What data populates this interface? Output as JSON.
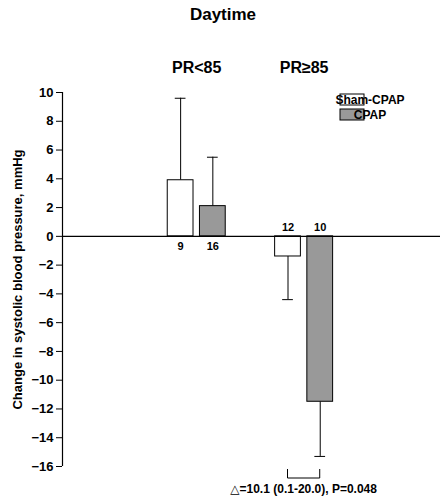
{
  "chart_data": {
    "type": "bar",
    "title": "Daytime",
    "categories": [
      "PR<85",
      "PR≥85"
    ],
    "series": [
      {
        "name": "Sham-CPAP",
        "color": "#ffffff",
        "values": [
          3.9,
          -1.4
        ],
        "errors": [
          5.7,
          3.0
        ],
        "n": [
          9,
          12
        ]
      },
      {
        "name": "CPAP",
        "color": "#999999",
        "values": [
          2.1,
          -11.5
        ],
        "errors": [
          3.4,
          3.8
        ],
        "n": [
          16,
          10
        ]
      }
    ],
    "y_label": "Change in systolic blood pressure, mmHg",
    "ylim": [
      -16,
      10
    ],
    "yticks": [
      -16,
      -14,
      -12,
      -10,
      -8,
      -6,
      -4,
      -2,
      0,
      2,
      4,
      6,
      8,
      10
    ],
    "legend": "upper right",
    "annotations": [
      {
        "text": "△=10.1 (0.1-20.0), P=0.048",
        "category": "PR≥85"
      }
    ]
  }
}
